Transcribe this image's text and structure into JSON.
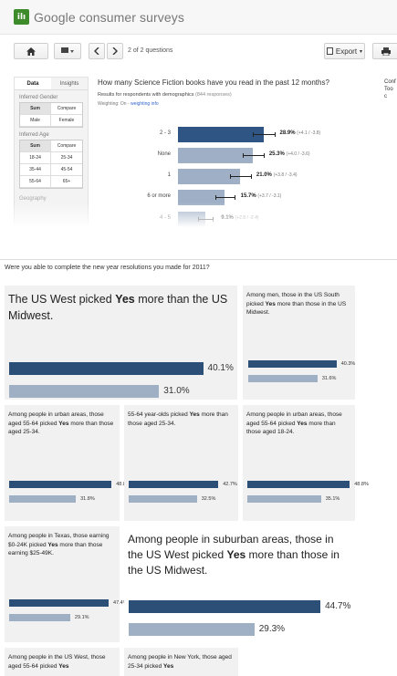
{
  "app": {
    "title": "Google consumer surveys",
    "logo_text": "ilı"
  },
  "toolbar": {
    "home_icon": "home-icon",
    "comment_icon": "comment-icon",
    "prev_icon": "chevron-left-icon",
    "next_icon": "chevron-right-icon",
    "pager": "2 of 2 questions",
    "export_label": "Export",
    "print_icon": "print-icon"
  },
  "sidebar": {
    "tabs": [
      "Data",
      "Insights"
    ],
    "gender_label": "Inferred Gender",
    "gender_options": [
      "Sum",
      "Compare",
      "Male",
      "Female"
    ],
    "age_label": "Inferred Age",
    "age_options": [
      "Sum",
      "Compare",
      "18-24",
      "25-34",
      "35-44",
      "45-54",
      "55-64",
      "65+"
    ],
    "geo_label": "Geography"
  },
  "survey": {
    "question": "How many Science Fiction books have you read in the past 12 months?",
    "results_prefix": "Results for respondents with demographics",
    "responses": "(844 responses)",
    "weighting_prefix": "Weighting: On - ",
    "weighting_link": "weighting info",
    "right_truncated": [
      "Conf",
      "Too c"
    ],
    "results": [
      {
        "label": "2 - 3",
        "value": 28.9,
        "display": "28.9%",
        "ci": "(+4.1 / -3.8)",
        "primary": true
      },
      {
        "label": "None",
        "value": 25.3,
        "display": "25.3%",
        "ci": "(+4.0 / -3.6)",
        "primary": false
      },
      {
        "label": "1",
        "value": 21.0,
        "display": "21.0%",
        "ci": "(+3.8 / -3.4)",
        "primary": false
      },
      {
        "label": "6 or more",
        "value": 15.7,
        "display": "15.7%",
        "ci": "(+3.7 / -3.1)",
        "primary": false
      },
      {
        "label": "4 - 5",
        "value": 9.1,
        "display": "9.1%",
        "ci": "(+2.8 / -2.4)",
        "primary": false
      }
    ]
  },
  "question2": "Were you able to complete the new year resolutions you made for 2011?",
  "cards": [
    {
      "pre": "The US West picked ",
      "bold": "Yes",
      "post": " more than the US Midwest.",
      "a": 40.1,
      "a_label": "40.1%",
      "b": 31.0,
      "b_label": "31.0%"
    },
    {
      "pre": "Among men, those in the US South picked ",
      "bold": "Yes",
      "post": " more than those in the US Midwest.",
      "a": 40.3,
      "a_label": "40.3%",
      "b": 31.6,
      "b_label": "31.6%"
    },
    {
      "pre": "Among people in urban areas, those aged 55-64 picked ",
      "bold": "Yes",
      "post": " more than those aged 25-34.",
      "a": 48.8,
      "a_label": "48.8%",
      "b": 31.8,
      "b_label": "31.8%"
    },
    {
      "pre": "55-64 year-olds picked ",
      "bold": "Yes",
      "post": " more than those aged 25-34.",
      "a": 42.7,
      "a_label": "42.7%",
      "b": 32.5,
      "b_label": "32.5%"
    },
    {
      "pre": "Among people in urban areas, those aged 55-64 picked ",
      "bold": "Yes",
      "post": " more than those aged 18-24.",
      "a": 48.8,
      "a_label": "48.8%",
      "b": 35.1,
      "b_label": "35.1%"
    },
    {
      "pre": "Among people in Texas, those earning $0-24K picked ",
      "bold": "Yes",
      "post": " more than those earning $25-49K.",
      "a": 47.4,
      "a_label": "47.4%",
      "b": 29.1,
      "b_label": "29.1%"
    },
    {
      "pre": "Among people in suburban areas, those in the US West picked ",
      "bold": "Yes",
      "post": " more than those in the US Midwest.",
      "a": 44.7,
      "a_label": "44.7%",
      "b": 29.3,
      "b_label": "29.3%"
    },
    {
      "pre": "Among people in the US West, those aged 55-64 picked ",
      "bold": "Yes",
      "post": ""
    },
    {
      "pre": "Among people in New York, those aged 25-34 picked ",
      "bold": "Yes",
      "post": ""
    }
  ],
  "colors": {
    "primary_bar": "#2c4f77",
    "secondary_bar": "#a0b0c4",
    "survey_primary": "#2e5583",
    "survey_secondary": "#9fb0c6"
  }
}
